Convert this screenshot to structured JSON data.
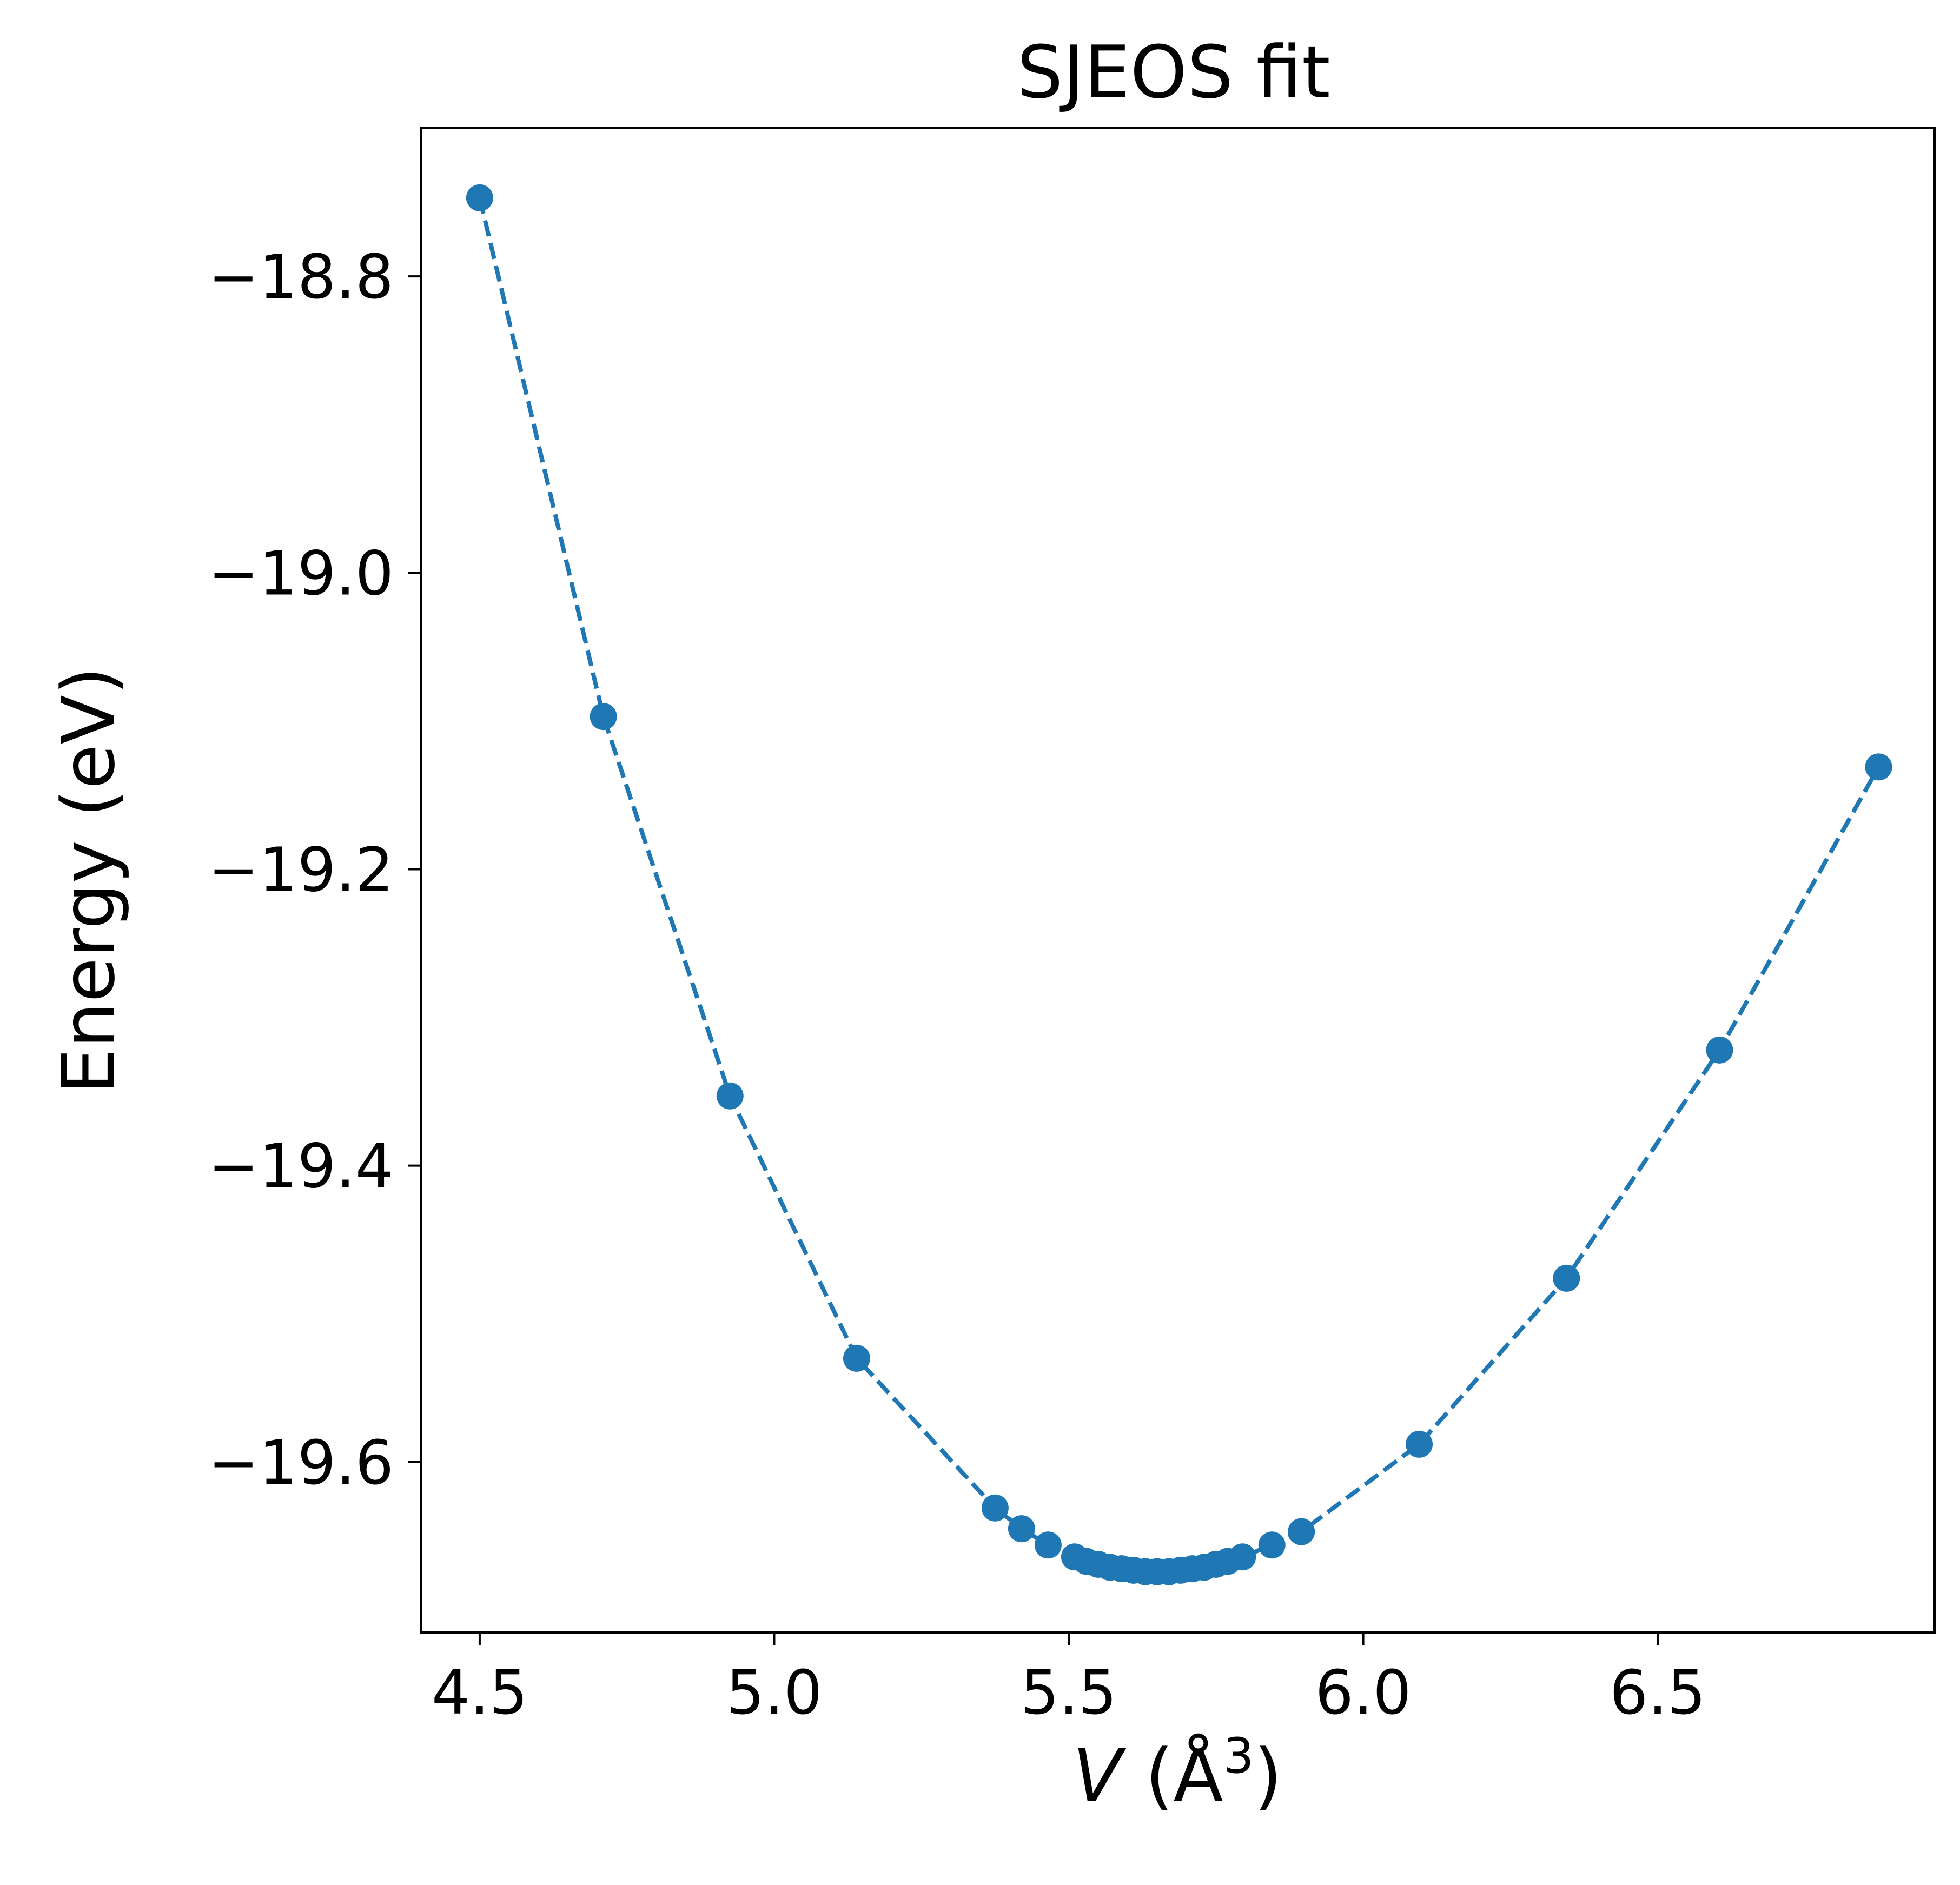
{
  "chart_data": {
    "type": "line",
    "title": "SJEOS fit",
    "xlabel": {
      "var": "V",
      "unit_open": " (Å",
      "sup": "3",
      "unit_close": ")"
    },
    "ylabel": "Energy (eV)",
    "xlim": [
      4.4,
      6.97
    ],
    "ylim": [
      -19.715,
      -18.7
    ],
    "x_ticks": [
      4.5,
      5.0,
      5.5,
      6.0,
      6.5
    ],
    "x_tick_labels": [
      "4.5",
      "5.0",
      "5.5",
      "6.0",
      "6.5"
    ],
    "y_ticks": [
      -18.8,
      -19.0,
      -19.2,
      -19.4,
      -19.6
    ],
    "y_tick_labels": [
      "−18.8",
      "−19.0",
      "−19.2",
      "−19.4",
      "−19.6"
    ],
    "grid": false,
    "colors": {
      "series": "#1f77b4"
    },
    "series": [
      {
        "line_style": "dashed",
        "marker": "circle",
        "x": [
          4.5,
          4.71,
          4.925,
          5.14,
          5.375,
          5.42,
          5.465,
          5.51,
          5.53,
          5.55,
          5.57,
          5.59,
          5.61,
          5.63,
          5.65,
          5.67,
          5.69,
          5.71,
          5.73,
          5.75,
          5.77,
          5.795,
          5.845,
          5.895,
          6.095,
          6.345,
          6.605,
          6.875
        ],
        "y": [
          -18.747,
          -19.097,
          -19.353,
          -19.53,
          -19.631,
          -19.645,
          -19.656,
          -19.664,
          -19.667,
          -19.669,
          -19.671,
          -19.672,
          -19.673,
          -19.674,
          -19.674,
          -19.674,
          -19.673,
          -19.672,
          -19.671,
          -19.669,
          -19.667,
          -19.664,
          -19.656,
          -19.647,
          -19.588,
          -19.476,
          -19.322,
          -19.131
        ]
      }
    ]
  }
}
